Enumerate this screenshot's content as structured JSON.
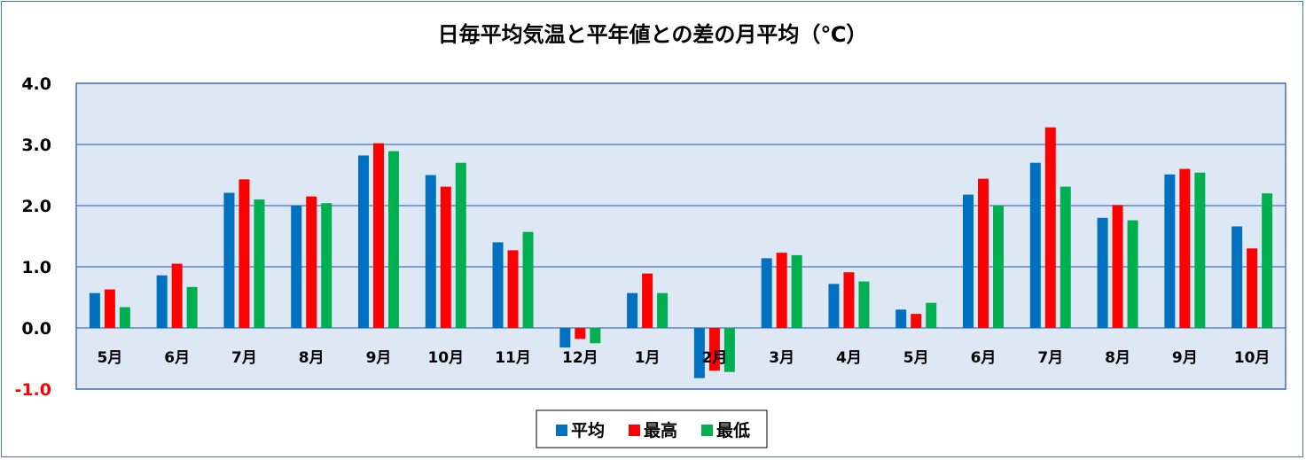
{
  "chart_data": {
    "type": "bar",
    "title": "日毎平均気温と平年値との差の月平均（℃）",
    "categories": [
      "5月",
      "6月",
      "7月",
      "8月",
      "9月",
      "10月",
      "11月",
      "12月",
      "1月",
      "2月",
      "3月",
      "4月",
      "5月",
      "6月",
      "7月",
      "8月",
      "9月",
      "10月"
    ],
    "series": [
      {
        "name": "平均",
        "color": "#0070c0",
        "values": [
          0.57,
          0.86,
          2.21,
          2.0,
          2.82,
          2.5,
          1.4,
          -0.32,
          0.57,
          -0.82,
          1.14,
          0.72,
          0.3,
          2.18,
          2.7,
          1.8,
          2.51,
          1.66
        ]
      },
      {
        "name": "最高",
        "color": "#ff0000",
        "values": [
          0.63,
          1.05,
          2.43,
          2.15,
          3.02,
          2.31,
          1.27,
          -0.18,
          0.89,
          -0.7,
          1.23,
          0.91,
          0.23,
          2.44,
          3.28,
          2.01,
          2.6,
          1.3
        ]
      },
      {
        "name": "最低",
        "color": "#00b050",
        "values": [
          0.34,
          0.67,
          2.1,
          2.04,
          2.89,
          2.7,
          1.57,
          -0.25,
          0.57,
          -0.72,
          1.19,
          0.76,
          0.41,
          2.0,
          2.31,
          1.76,
          2.54,
          2.2
        ]
      }
    ],
    "ylim": [
      -1.0,
      4.0
    ],
    "yticks": [
      {
        "value": 4.0,
        "label": "4.0"
      },
      {
        "value": 3.0,
        "label": "3.0"
      },
      {
        "value": 2.0,
        "label": "2.0"
      },
      {
        "value": 1.0,
        "label": "1.0"
      },
      {
        "value": 0.0,
        "label": "0.0"
      },
      {
        "value": -1.0,
        "label": "-1.0"
      }
    ],
    "grid": true,
    "legend_position": "bottom",
    "colors": {
      "plot_background": "#dde8f4",
      "plot_border": "#4472c4",
      "gridline": "#4472c4",
      "tick_text": "#000000",
      "negative_tick_text": "#ff0000",
      "frame_border": "#4472c4"
    }
  }
}
